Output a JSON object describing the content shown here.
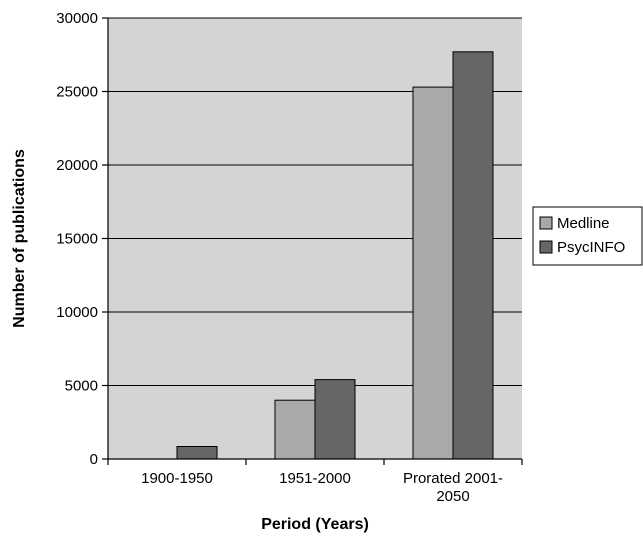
{
  "chart_data": {
    "type": "bar",
    "title": "",
    "xlabel": "Period (Years)",
    "ylabel": "Number of publications",
    "categories": [
      [
        "1900-1950"
      ],
      [
        "1951-2000"
      ],
      [
        "Prorated 2001-",
        "2050"
      ]
    ],
    "series": [
      {
        "name": "Medline",
        "values": [
          0,
          4000,
          25300
        ],
        "color": "#a9a9a9"
      },
      {
        "name": "PsycINFO",
        "values": [
          850,
          5400,
          27700
        ],
        "color": "#666666"
      }
    ],
    "ylim": [
      0,
      30000
    ],
    "yticks": [
      0,
      5000,
      10000,
      15000,
      20000,
      25000,
      30000
    ],
    "grid": true,
    "plot_background": "#d4d4d4",
    "legend_position": "right"
  }
}
